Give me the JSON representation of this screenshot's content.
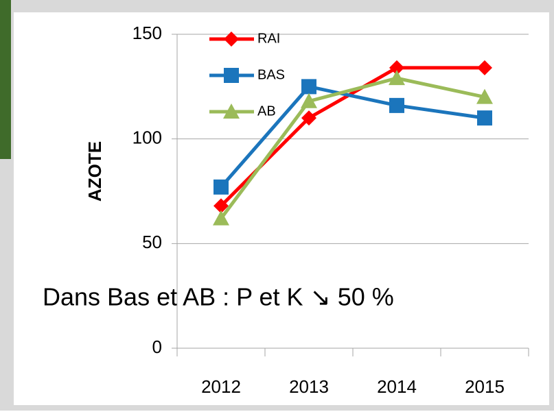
{
  "chart_data": {
    "type": "line",
    "y_label": "AZOTE",
    "annotation": "Dans Bas et AB : P et K ↘ 50 %",
    "categories": [
      "2012",
      "2013",
      "2014",
      "2015"
    ],
    "series": [
      {
        "name": "RAI",
        "color": "#ff0000",
        "marker": "diamond",
        "values": [
          68,
          110,
          134,
          134
        ]
      },
      {
        "name": "BAS",
        "color": "#1b75bc",
        "marker": "square",
        "values": [
          77,
          125,
          116,
          110
        ]
      },
      {
        "name": "AB",
        "color": "#9bbb59",
        "marker": "triangle",
        "values": [
          62,
          118,
          129,
          120
        ]
      }
    ],
    "ylim": [
      0,
      150
    ],
    "yticks": [
      0,
      50,
      100,
      150
    ],
    "grid": true
  }
}
